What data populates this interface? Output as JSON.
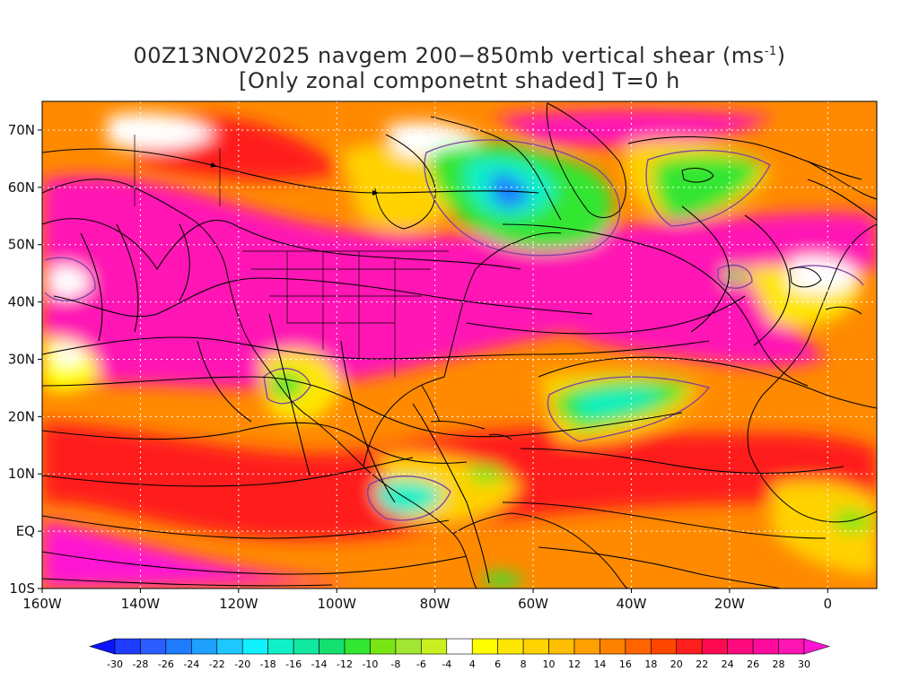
{
  "title": {
    "line1_prefix": "00Z13NOV2025 navgem 200−850mb vertical shear (ms",
    "line1_sup": "-1",
    "line1_suffix": ")",
    "line2": "[Only zonal componetnt shaded] T=0 h"
  },
  "axes": {
    "lat_labels": [
      "70N",
      "60N",
      "50N",
      "40N",
      "30N",
      "20N",
      "10N",
      "EQ",
      "10S"
    ],
    "lat_values": [
      70,
      60,
      50,
      40,
      30,
      20,
      10,
      0,
      -10
    ],
    "lon_labels": [
      "160W",
      "140W",
      "120W",
      "100W",
      "80W",
      "60W",
      "40W",
      "20W",
      "0"
    ],
    "lon_values": [
      -160,
      -140,
      -120,
      -100,
      -80,
      -60,
      -40,
      -20,
      0
    ],
    "lon_range": [
      -160,
      10
    ],
    "lat_range": [
      -10,
      75
    ],
    "grid": "dotted"
  },
  "colorbar": {
    "labels": [
      "-30",
      "-28",
      "-26",
      "-24",
      "-22",
      "-20",
      "-18",
      "-16",
      "-14",
      "-12",
      "-10",
      "-8",
      "-6",
      "-4",
      "4",
      "6",
      "8",
      "10",
      "12",
      "14",
      "16",
      "18",
      "20",
      "22",
      "24",
      "26",
      "28",
      "30"
    ],
    "colors": [
      "#0a14ff",
      "#1e3cff",
      "#2a5cff",
      "#1e7cff",
      "#1ea0ff",
      "#1ec8ff",
      "#10f0ff",
      "#10f0c8",
      "#10e8a0",
      "#14e070",
      "#32e632",
      "#78e614",
      "#a0e632",
      "#c8f01e",
      "#ffffff",
      "#ffff00",
      "#ffe600",
      "#ffd200",
      "#ffbe00",
      "#ffa000",
      "#ff8200",
      "#ff6400",
      "#ff4600",
      "#ff1e1e",
      "#ff0a50",
      "#ff0a7c",
      "#ff0a9c",
      "#ff14b4",
      "#ff14d2"
    ]
  },
  "colors": {
    "strong_positive": "#ff14b4",
    "positive_high": "#ff1e1e",
    "positive_mid": "#ff8200",
    "positive_low": "#ffd200",
    "near_zero": "#ffffff",
    "negative_low": "#a0e632",
    "negative_mid": "#10f0c8",
    "negative_high": "#1e7cff",
    "coast": "#000000",
    "contour": "#8040a0",
    "stream": "#000000"
  }
}
